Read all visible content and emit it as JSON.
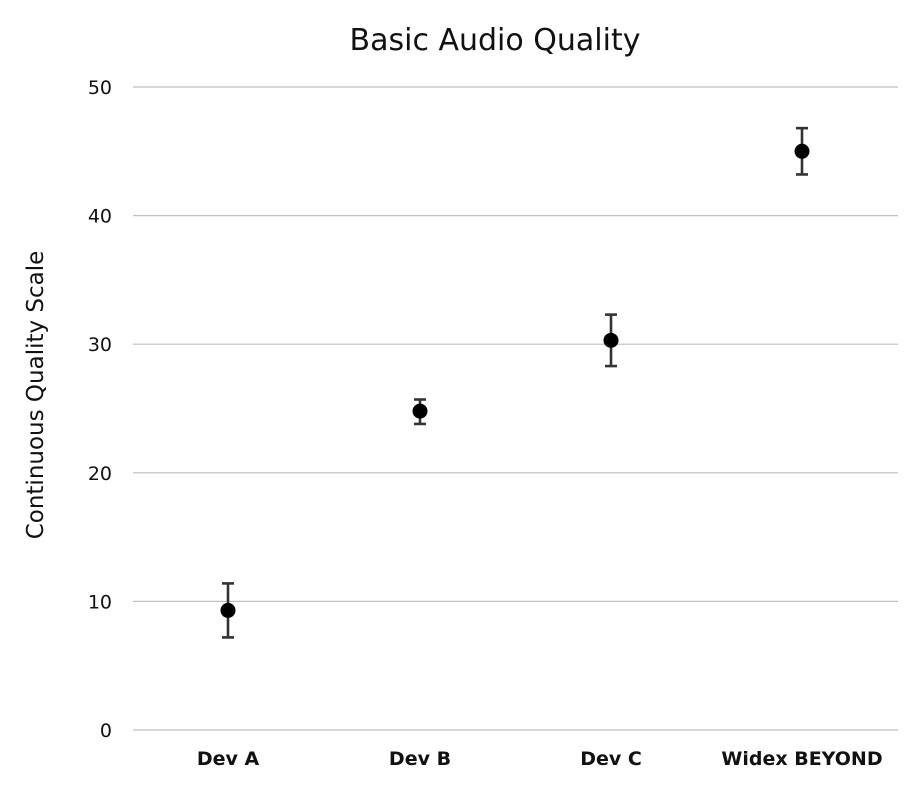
{
  "chart_data": {
    "type": "scatter",
    "title": "Basic Audio Quality",
    "xlabel": "",
    "ylabel": "Continuous Quality Scale",
    "categories": [
      "Dev A",
      "Dev B",
      "Dev C",
      "Widex BEYOND"
    ],
    "values": [
      9.3,
      24.8,
      30.3,
      45.0
    ],
    "error_low": [
      7.2,
      23.8,
      28.3,
      43.2
    ],
    "error_high": [
      11.4,
      25.7,
      32.3,
      46.8
    ],
    "ylim": [
      0,
      50
    ],
    "yticks": [
      0,
      10,
      20,
      30,
      40,
      50
    ],
    "grid": true,
    "legend": "none",
    "colors": {
      "marker": "#000000",
      "error_bar": "#333333",
      "grid": "#bfbfbf"
    }
  }
}
